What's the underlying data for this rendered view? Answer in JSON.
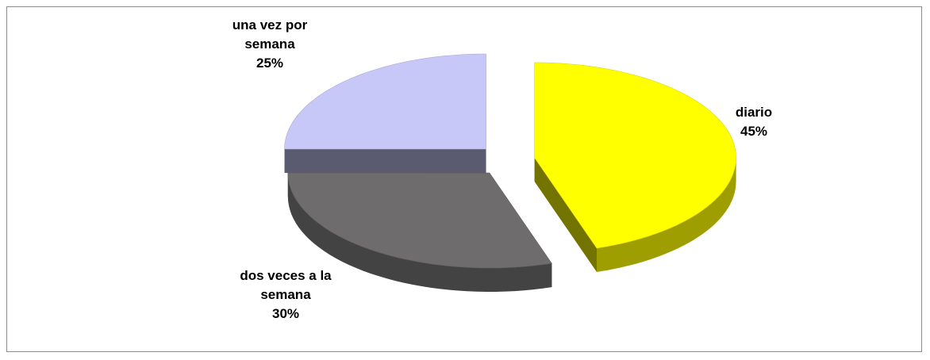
{
  "chart_data": {
    "type": "pie",
    "categories": [
      "diario",
      "dos veces a la semana",
      "una vez por semana"
    ],
    "values": [
      45,
      30,
      25
    ],
    "value_labels": [
      "45%",
      "30%",
      "25%"
    ],
    "colors": [
      "#ffff00",
      "#6e6c6c",
      "#c8c8f8"
    ]
  }
}
